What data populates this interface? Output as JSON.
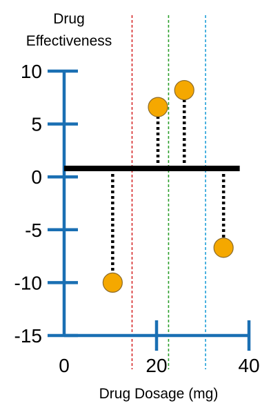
{
  "chart_data": {
    "type": "scatter",
    "ylabel_lines": [
      "Drug",
      "Effectiveness"
    ],
    "xlabel": "Drug Dosage (mg)",
    "xlim": [
      0,
      40
    ],
    "ylim": [
      -15,
      10
    ],
    "x_ticks": [
      0,
      20,
      40
    ],
    "y_ticks": [
      10,
      5,
      0,
      -5,
      -10,
      -15
    ],
    "x_tick_labels": [
      "0",
      "20",
      "40"
    ],
    "y_tick_labels": [
      "10",
      "5",
      "0",
      "-5",
      "-10",
      "-15"
    ],
    "baseline": {
      "y": 0.8,
      "x_start": 0,
      "x_end": 38
    },
    "points": [
      {
        "x": 10.5,
        "y": -10
      },
      {
        "x": 20.3,
        "y": 6.6
      },
      {
        "x": 26.0,
        "y": 8.2
      },
      {
        "x": 34.5,
        "y": -6.7
      }
    ],
    "vlines": [
      {
        "x": 14.7,
        "color": "#d62728"
      },
      {
        "x": 22.6,
        "color": "#2ca02c"
      },
      {
        "x": 30.6,
        "color": "#1f9fd8"
      }
    ],
    "colors": {
      "axis": "#1a6fb3",
      "point_fill": "#f5a800",
      "point_stroke": "#8a6a2a",
      "baseline": "#000000",
      "residual": "#000000"
    }
  }
}
